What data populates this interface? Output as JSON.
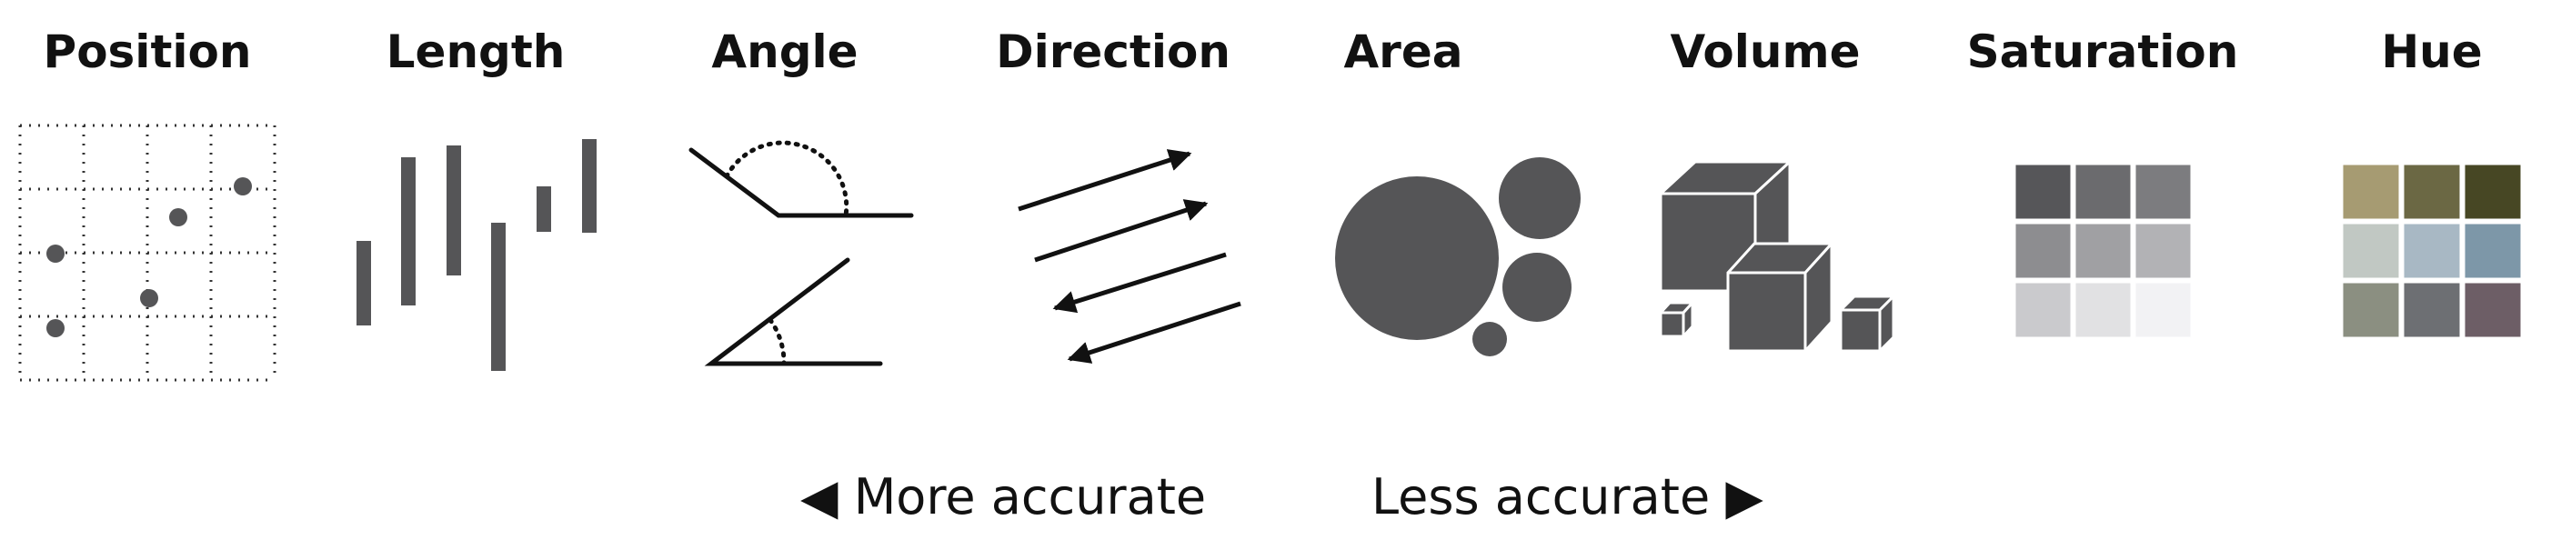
{
  "categories": [
    "Position",
    "Length",
    "Angle",
    "Direction",
    "Area",
    "Volume",
    "Saturation",
    "Hue"
  ],
  "footer": {
    "more": "◀ More accurate",
    "less": "Less accurate ▶"
  },
  "colors": {
    "mark": "#555557",
    "saturation_swatches": [
      "#565659",
      "#6b6b6e",
      "#7c7c7f",
      "#8d8d90",
      "#a0a0a3",
      "#b2b2b5",
      "#cacacd",
      "#e1e1e3",
      "#f2f2f4"
    ],
    "hue_swatches": [
      "#a69b72",
      "#6b6844",
      "#474724",
      "#c1c8c3",
      "#a8b8c4",
      "#7d97a8",
      "#8b8f81",
      "#6d6f73",
      "#6d5e66"
    ]
  }
}
